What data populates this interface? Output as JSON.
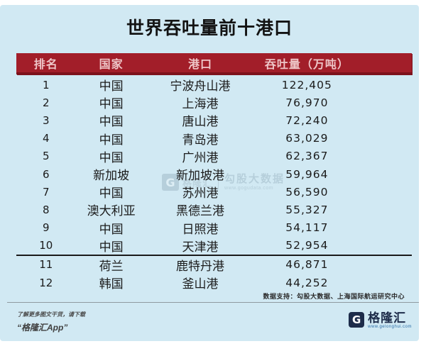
{
  "title": "世界吞吐量前十港口",
  "table": {
    "headers": [
      "排名",
      "国家",
      "港口",
      "吞吐量（万吨）"
    ],
    "rows": [
      [
        "1",
        "中国",
        "宁波舟山港",
        "122,405"
      ],
      [
        "2",
        "中国",
        "上海港",
        "76,970"
      ],
      [
        "3",
        "中国",
        "唐山港",
        "72,240"
      ],
      [
        "4",
        "中国",
        "青岛港",
        "63,029"
      ],
      [
        "5",
        "中国",
        "广州港",
        "62,367"
      ],
      [
        "6",
        "新加坡",
        "新加坡港",
        "59,964"
      ],
      [
        "7",
        "中国",
        "苏州港",
        "56,590"
      ],
      [
        "8",
        "澳大利亚",
        "黑德兰港",
        "55,327"
      ],
      [
        "9",
        "中国",
        "日照港",
        "54,117"
      ],
      [
        "10",
        "中国",
        "天津港",
        "52,954"
      ],
      [
        "11",
        "荷兰",
        "鹿特丹港",
        "46,871"
      ],
      [
        "12",
        "韩国",
        "釜山港",
        "44,252"
      ]
    ]
  },
  "chart_data": {
    "type": "table",
    "title": "世界吞吐量前十港口",
    "columns": [
      "排名",
      "国家",
      "港口",
      "吞吐量（万吨）"
    ],
    "rows": [
      [
        1,
        "中国",
        "宁波舟山港",
        122405
      ],
      [
        2,
        "中国",
        "上海港",
        76970
      ],
      [
        3,
        "中国",
        "唐山港",
        72240
      ],
      [
        4,
        "中国",
        "青岛港",
        63029
      ],
      [
        5,
        "中国",
        "广州港",
        62367
      ],
      [
        6,
        "新加坡",
        "新加坡港",
        59964
      ],
      [
        7,
        "中国",
        "苏州港",
        56590
      ],
      [
        8,
        "澳大利亚",
        "黑德兰港",
        55327
      ],
      [
        9,
        "中国",
        "日照港",
        54117
      ],
      [
        10,
        "中国",
        "天津港",
        52954
      ],
      [
        11,
        "荷兰",
        "鹿特丹港",
        46871
      ],
      [
        12,
        "韩国",
        "釜山港",
        44252
      ]
    ],
    "notes": "rows 1-10 are the top ten; rows 11-12 shown below a separator line"
  },
  "footnote": "数据支持：勾股大数据、上海国际航运研究中心",
  "footer": {
    "left_line1": "了解更多图文干货，请下载",
    "left_line2": "“格隆汇App”",
    "brand_letter": "G",
    "brand_name": "格隆汇",
    "brand_url": "www.gelonghui.com"
  },
  "watermark": {
    "letter": "G",
    "brand": "格隆汇",
    "name": "勾股大数据",
    "url": "www.gogudata.com"
  },
  "colors": {
    "panel_bg": "#d1e9f3",
    "header_bg": "#a21e29",
    "header_border": "#7d121c",
    "header_text": "#eec6c8",
    "body_text": "#1b1b1b",
    "brand_navy": "#1d2c4a",
    "watermark": "#9db7c4"
  }
}
